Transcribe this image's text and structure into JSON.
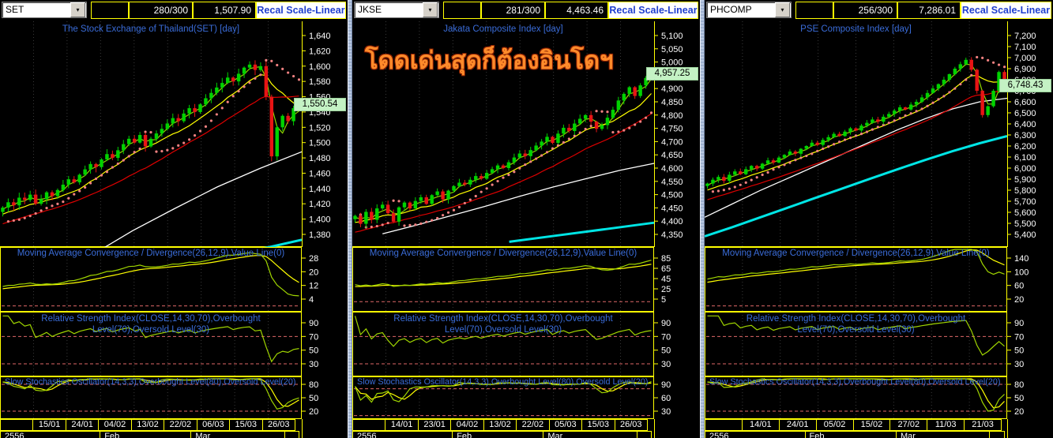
{
  "colors": {
    "candle_up": "#00d200",
    "candle_down": "#e81414",
    "ma_fast": "#8fd400",
    "ma_mid": "#ffff00",
    "ma_slow": "#dd0000",
    "ma_long": "#ffffff",
    "ma_longest": "#00e5e5",
    "sar_dot": "#f08080",
    "axis": "#ffff00",
    "grid": "#3a3a3a",
    "title_blue": "#3a6cd8",
    "level_dash": "#e06868",
    "badge_bg": "#c4f2c4",
    "label_text": "#ffffff",
    "ind_line": "#9fd400",
    "ind_signal": "#ffff00"
  },
  "panels": [
    {
      "symbol": "SET",
      "toolbar": {
        "count": "280/300",
        "value": "1,507.90",
        "recal": "Recal Scale-Linear"
      },
      "title": "The Stock Exchange of Thailand(SET) [day]",
      "annotation": "",
      "last_label": "1,550.54",
      "macd_title": "Moving Average Convergence / Divergence(26,12,9),Value Line(0)",
      "rsi_title": "Relative Strength Index(CLOSE,14,30,70),Overbought Level(70),Oversold Level(30)",
      "stoch_title": "Slow Stochastics Oscillator(14,3,3),Overbought Level(80),Oversold Level(20)"
    },
    {
      "symbol": "JKSE",
      "toolbar": {
        "count": "281/300",
        "value": "4,463.46",
        "recal": "Recal Scale-Linear"
      },
      "title": "Jakata Composite Index [day]",
      "annotation": "โดดเด่นสุดก็ต้องอินโดฯ",
      "last_label": "4,957.25",
      "macd_title": "Moving Average Convergence / Divergence(26,12,9),Value Line(0)",
      "rsi_title": "Relative Strength Index(CLOSE,14,30,70),Overbought Level(70),Oversold Level(30)",
      "stoch_title": "Slow Stochastics Oscillator(14,3,3),Overbought Level(80),Oversold Level(20)"
    },
    {
      "symbol": "PHCOMP",
      "toolbar": {
        "count": "256/300",
        "value": "7,286.01",
        "recal": "Recal Scale-Linear"
      },
      "title": "PSE Composite Index [day]",
      "annotation": "",
      "last_label": "6,748.43",
      "macd_title": "Moving Average Convergence / Divergence(26,12,9),Value Line(0)",
      "rsi_title": "Relative Strength Index(CLOSE,14,30,70),Overbought Level(70),Oversold Level(30)",
      "stoch_title": "Slow Stochastics Oscillator(14,3,3),Overbought Level(80),Oversold Level(20)"
    }
  ],
  "chart_data": [
    {
      "type": "candlestick",
      "symbol": "SET",
      "title": "The Stock Exchange of Thailand(SET) [day]",
      "y_axis": {
        "max": 1640,
        "min": 1380,
        "step": 20
      },
      "last_close": 1550.54,
      "closes": [
        1415,
        1422,
        1418,
        1428,
        1425,
        1432,
        1420,
        1426,
        1435,
        1430,
        1438,
        1445,
        1452,
        1448,
        1458,
        1465,
        1472,
        1468,
        1478,
        1485,
        1480,
        1490,
        1498,
        1505,
        1500,
        1510,
        1495,
        1505,
        1512,
        1518,
        1525,
        1532,
        1528,
        1538,
        1545,
        1540,
        1550,
        1558,
        1565,
        1572,
        1578,
        1585,
        1580,
        1590,
        1598,
        1602,
        1595,
        1600,
        1560,
        1482,
        1520,
        1535,
        1528,
        1545,
        1550.54
      ],
      "wick": 7,
      "trend_ramp": 55,
      "overlays": {
        "white_ma": {
          "x0": 0.3,
          "values": [
            1352,
            1385,
            1414,
            1442,
            1466,
            1488
          ]
        },
        "cyan_ma": {
          "x0": 0.8,
          "values": [
            1356,
            1364,
            1373
          ]
        }
      },
      "dates": [
        "15/01",
        "24/01",
        "04/02",
        "13/02",
        "22/02",
        "06/03",
        "15/03",
        "26/03"
      ],
      "periods": [
        {
          "label": "2556",
          "w": 0.333
        },
        {
          "label": "Feb",
          "w": 0.304
        },
        {
          "label": "Mar",
          "w": 0.312
        },
        {
          "label": "",
          "w": 0.051
        }
      ],
      "macd": {
        "ticks": [
          28,
          20,
          12,
          4
        ],
        "zero_level": 0
      },
      "rsi": {
        "ticks": [
          90,
          70,
          50,
          30
        ],
        "levels": [
          70,
          30
        ]
      },
      "stoch": {
        "ticks": [
          80,
          50,
          20
        ],
        "levels": [
          80,
          20
        ]
      }
    },
    {
      "type": "candlestick",
      "symbol": "JKSE",
      "title": "Jakata Composite Index [day]",
      "y_axis": {
        "max": 5100,
        "min": 4350,
        "step": 50
      },
      "last_close": 4957.25,
      "closes": [
        4420,
        4390,
        4435,
        4405,
        4448,
        4462,
        4430,
        4398,
        4452,
        4470,
        4448,
        4476,
        4490,
        4465,
        4498,
        4512,
        4482,
        4515,
        4532,
        4545,
        4538,
        4556,
        4570,
        4560,
        4582,
        4596,
        4610,
        4600,
        4622,
        4640,
        4655,
        4645,
        4668,
        4685,
        4700,
        4718,
        4695,
        4730,
        4752,
        4740,
        4768,
        4786,
        4800,
        4775,
        4748,
        4762,
        4790,
        4820,
        4855,
        4880,
        4905,
        4872,
        4912,
        4940,
        4957.25
      ],
      "wick": 16,
      "trend_ramp": 160,
      "overlays": {
        "white_ma": {
          "x0": 0.1,
          "values": [
            4352,
            4385,
            4420,
            4455,
            4492,
            4528,
            4560,
            4592,
            4618
          ]
        },
        "cyan_ma": {
          "x0": 0.52,
          "values": [
            4322,
            4346,
            4370,
            4394
          ]
        }
      },
      "dates": [
        "14/01",
        "23/01",
        "04/02",
        "13/02",
        "22/02",
        "05/03",
        "15/03",
        "26/03"
      ],
      "periods": [
        {
          "label": "2556",
          "w": 0.333
        },
        {
          "label": "Feb",
          "w": 0.304
        },
        {
          "label": "Mar",
          "w": 0.312
        },
        {
          "label": "",
          "w": 0.051
        }
      ],
      "macd": {
        "ticks": [
          85,
          65,
          45,
          25,
          5
        ],
        "zero_level": 0
      },
      "rsi": {
        "ticks": [
          90,
          70,
          50,
          30
        ],
        "levels": [
          70,
          30
        ]
      },
      "stoch": {
        "ticks": [
          90,
          60,
          30
        ],
        "levels": [
          80,
          20
        ]
      }
    },
    {
      "type": "candlestick",
      "symbol": "PHCOMP",
      "title": "PSE Composite Index [day]",
      "y_axis": {
        "max": 7200,
        "min": 5400,
        "step": 100
      },
      "last_close": 6748.43,
      "closes": [
        5860,
        5895,
        5920,
        5885,
        5940,
        5970,
        5945,
        5990,
        6020,
        5995,
        6040,
        6070,
        6050,
        6095,
        6120,
        6150,
        6130,
        6175,
        6200,
        6230,
        6210,
        6255,
        6280,
        6310,
        6290,
        6330,
        6360,
        6340,
        6385,
        6410,
        6440,
        6420,
        6465,
        6490,
        6520,
        6550,
        6530,
        6575,
        6600,
        6640,
        6680,
        6720,
        6760,
        6800,
        6850,
        6900,
        6940,
        6980,
        6890,
        6700,
        6480,
        6560,
        6700,
        6870,
        6748.43
      ],
      "wick": 28,
      "trend_ramp": 380,
      "overlays": {
        "white_ma": {
          "x0": 0.0,
          "values": [
            5555,
            5675,
            5795,
            5905,
            6015,
            6125,
            6235,
            6345,
            6445,
            6535,
            6600,
            6632
          ]
        },
        "cyan_ma": {
          "x0": 0.0,
          "values": [
            5382,
            5465,
            5552,
            5640,
            5728,
            5815,
            5902,
            5988,
            6072,
            6152,
            6225,
            6290
          ]
        }
      },
      "dates": [
        "14/01",
        "24/01",
        "05/02",
        "15/02",
        "27/02",
        "11/03",
        "21/03"
      ],
      "periods": [
        {
          "label": "2556",
          "w": 0.333
        },
        {
          "label": "Feb",
          "w": 0.304
        },
        {
          "label": "Mar",
          "w": 0.312
        },
        {
          "label": "",
          "w": 0.051
        }
      ],
      "macd": {
        "ticks": [
          140,
          100,
          60,
          20
        ],
        "zero_level": 0
      },
      "rsi": {
        "ticks": [
          90,
          70,
          50,
          30
        ],
        "levels": [
          70,
          30
        ]
      },
      "stoch": {
        "ticks": [
          80,
          50,
          20
        ],
        "levels": [
          80,
          20
        ]
      }
    }
  ]
}
